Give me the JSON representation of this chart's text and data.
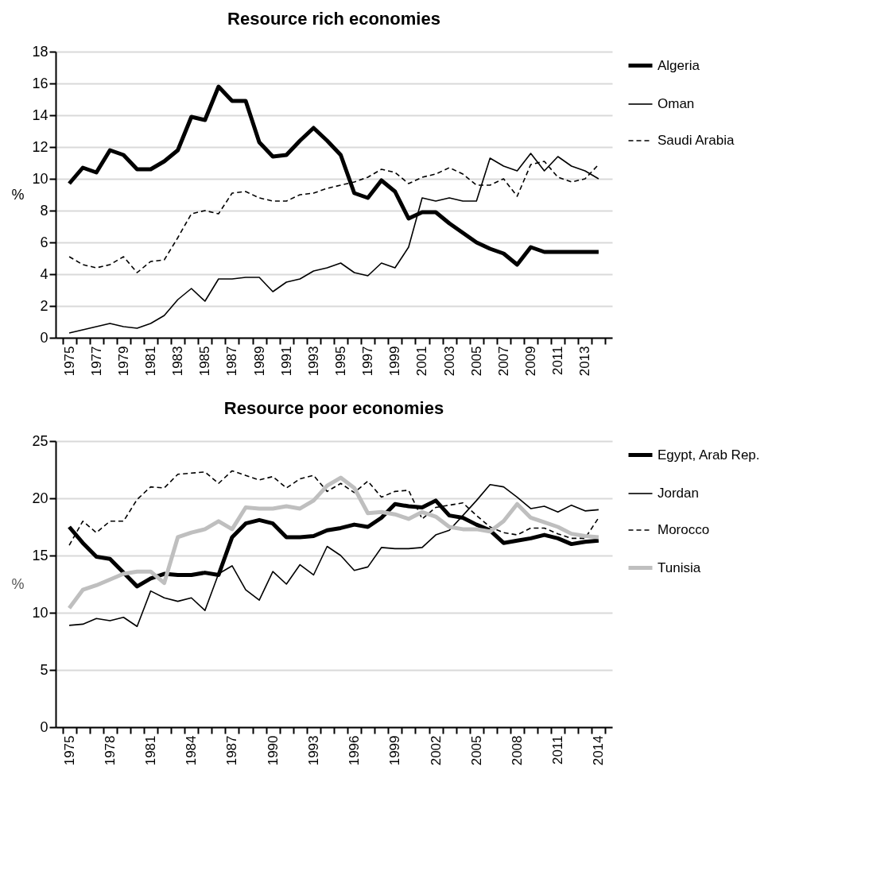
{
  "chart_data": [
    {
      "type": "line",
      "title": "Resource rich economies",
      "ylabel": "%",
      "categories": [
        "1975",
        null,
        "1977",
        null,
        "1979",
        null,
        "1981",
        null,
        "1983",
        null,
        "1985",
        null,
        "1987",
        null,
        "1989",
        null,
        "1991",
        null,
        "1993",
        null,
        "1995",
        null,
        "1997",
        null,
        "1999",
        null,
        "2001",
        null,
        "2003",
        null,
        "2005",
        null,
        "2007",
        null,
        "2009",
        null,
        "2011",
        null,
        "2013",
        null
      ],
      "ylim": [
        0,
        18
      ],
      "yticks": [
        0,
        2,
        4,
        6,
        8,
        10,
        12,
        14,
        16,
        18
      ],
      "grid": "y",
      "legend": "right",
      "series": [
        {
          "name": "Algeria",
          "color": "#000000",
          "line_style": "solid",
          "values": [
            9.7,
            10.7,
            10.4,
            11.8,
            11.5,
            10.6,
            10.6,
            11.1,
            11.8,
            13.9,
            13.7,
            15.8,
            14.9,
            14.9,
            12.3,
            11.4,
            11.5,
            12.4,
            13.2,
            12.4,
            11.5,
            9.1,
            8.8,
            9.9,
            9.2,
            7.5,
            7.9,
            7.9,
            7.2,
            6.6,
            6.0,
            5.6,
            5.3,
            4.6,
            5.7,
            5.4,
            5.4,
            5.4,
            5.4,
            5.4
          ]
        },
        {
          "name": "Oman",
          "color": "#000000",
          "line_style": "solid",
          "values": [
            0.3,
            0.5,
            0.7,
            0.9,
            0.7,
            0.6,
            0.9,
            1.4,
            2.4,
            3.1,
            2.3,
            3.7,
            3.7,
            3.8,
            3.8,
            2.9,
            3.5,
            3.7,
            4.2,
            4.4,
            4.7,
            4.1,
            3.9,
            4.7,
            4.4,
            5.7,
            8.8,
            8.6,
            8.8,
            8.6,
            8.6,
            11.3,
            10.8,
            10.5,
            11.6,
            10.5,
            11.4,
            10.8,
            10.5,
            10.0
          ]
        },
        {
          "name": "Saudi Arabia",
          "color": "#000000",
          "line_style": "dashed",
          "values": [
            5.1,
            4.6,
            4.4,
            4.6,
            5.1,
            4.1,
            4.8,
            4.9,
            6.3,
            7.8,
            8.0,
            7.8,
            9.1,
            9.2,
            8.8,
            8.6,
            8.6,
            9.0,
            9.1,
            9.4,
            9.6,
            9.8,
            10.1,
            10.6,
            10.4,
            9.7,
            10.1,
            10.3,
            10.7,
            10.3,
            9.6,
            9.6,
            10.0,
            8.9,
            10.9,
            11.1,
            10.1,
            9.8,
            10.0,
            10.9
          ]
        }
      ]
    },
    {
      "type": "line",
      "title": "Resource poor economies",
      "ylabel": "%",
      "categories": [
        "1975",
        null,
        null,
        "1978",
        null,
        null,
        "1981",
        null,
        null,
        "1984",
        null,
        null,
        "1987",
        null,
        null,
        "1990",
        null,
        null,
        "1993",
        null,
        null,
        "1996",
        null,
        null,
        "1999",
        null,
        null,
        "2002",
        null,
        null,
        "2005",
        null,
        null,
        "2008",
        null,
        null,
        "2011",
        null,
        null,
        "2014"
      ],
      "ylim": [
        0,
        25
      ],
      "yticks": [
        0,
        5,
        10,
        15,
        20,
        25
      ],
      "grid": "y",
      "legend": "right",
      "series": [
        {
          "name": "Egypt, Arab Rep.",
          "color": "#000000",
          "line_style": "solid",
          "values": [
            17.5,
            16.1,
            14.9,
            14.7,
            13.5,
            12.3,
            13.0,
            13.4,
            13.3,
            13.3,
            13.5,
            13.3,
            16.6,
            17.8,
            18.1,
            17.8,
            16.6,
            16.6,
            16.7,
            17.2,
            17.4,
            17.7,
            17.5,
            18.3,
            19.5,
            19.3,
            19.2,
            19.8,
            18.5,
            18.3,
            17.7,
            17.2,
            16.1,
            16.3,
            16.5,
            16.8,
            16.5,
            16.0,
            16.2,
            16.3
          ]
        },
        {
          "name": "Jordan",
          "color": "#000000",
          "line_style": "solid",
          "values": [
            8.9,
            9.0,
            9.5,
            9.3,
            9.6,
            8.8,
            11.9,
            11.3,
            11.0,
            11.3,
            10.2,
            13.4,
            14.1,
            12.0,
            11.1,
            13.6,
            12.5,
            14.2,
            13.3,
            15.8,
            15.0,
            13.7,
            14.0,
            15.7,
            15.6,
            15.6,
            15.7,
            16.8,
            17.2,
            18.5,
            19.8,
            21.2,
            21.0,
            20.1,
            19.1,
            19.3,
            18.8,
            19.4,
            18.9,
            19.0
          ]
        },
        {
          "name": "Morocco",
          "color": "#000000",
          "line_style": "dashed",
          "values": [
            15.9,
            18.0,
            17.0,
            18.0,
            18.0,
            19.9,
            21.0,
            20.9,
            22.1,
            22.2,
            22.3,
            21.3,
            22.4,
            22.0,
            21.6,
            21.9,
            20.9,
            21.7,
            22.0,
            20.6,
            21.3,
            20.5,
            21.5,
            20.1,
            20.6,
            20.7,
            18.2,
            19.2,
            19.4,
            19.6,
            18.5,
            17.5,
            17.0,
            16.8,
            17.4,
            17.4,
            16.9,
            16.5,
            16.5,
            18.3
          ]
        },
        {
          "name": "Tunisia",
          "color": "#bfbfbf",
          "line_style": "solid",
          "values": [
            10.4,
            12.0,
            12.4,
            12.9,
            13.4,
            13.6,
            13.6,
            12.6,
            16.6,
            17.0,
            17.3,
            18.0,
            17.3,
            19.2,
            19.1,
            19.1,
            19.3,
            19.1,
            19.8,
            21.1,
            21.8,
            20.9,
            18.7,
            18.8,
            18.6,
            18.2,
            18.8,
            18.4,
            17.5,
            17.3,
            17.3,
            17.1,
            18.0,
            19.5,
            18.3,
            17.9,
            17.5,
            16.9,
            16.7,
            16.6
          ]
        }
      ]
    }
  ]
}
